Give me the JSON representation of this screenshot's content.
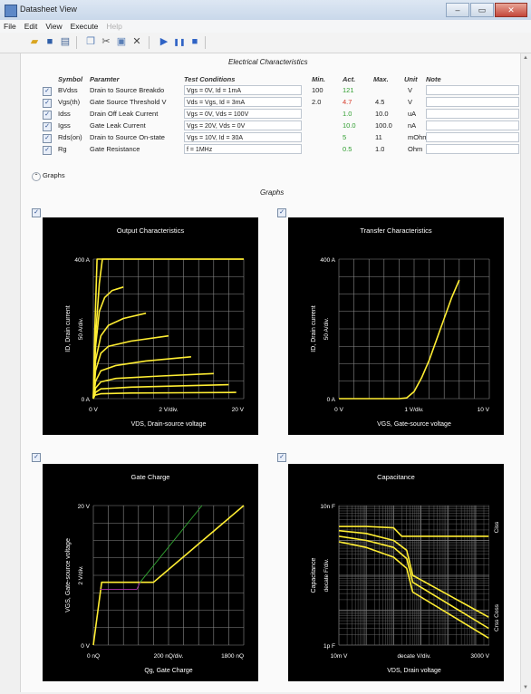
{
  "window": {
    "title": "Datasheet View",
    "minimize": "‒",
    "maximize": "▭",
    "close": "✕"
  },
  "menu": {
    "file": "File",
    "edit": "Edit",
    "view": "View",
    "execute": "Execute",
    "help": "Help"
  },
  "sections": {
    "electrical": "Electrical Characteristics",
    "graphs_toggle": "Graphs",
    "graphs": "Graphs"
  },
  "table": {
    "headers": {
      "symbol": "Symbol",
      "parameter": "Paramter",
      "conditions": "Test Conditions",
      "min": "Min.",
      "act": "Act.",
      "max": "Max.",
      "unit": "Unit",
      "note": "Note"
    },
    "rows": [
      {
        "symbol": "BVdss",
        "parameter": "Drain to Source Breakdo",
        "conditions": "Vgs = 0V, Id = 1mA",
        "min": "100",
        "act": "121",
        "act_color": "#2f9e2f",
        "max": "",
        "unit": "V",
        "note": ""
      },
      {
        "symbol": "Vgs(th)",
        "parameter": "Gate Source Threshold V",
        "conditions": "Vds = Vgs, Id = 3mA",
        "min": "2.0",
        "act": "4.7",
        "act_color": "#d63a2a",
        "max": "4.5",
        "unit": "V",
        "note": ""
      },
      {
        "symbol": "Idss",
        "parameter": "Drain Off Leak Current",
        "conditions": "Vgs = 0V, Vds = 100V",
        "min": "",
        "act": "1.0",
        "act_color": "#2f9e2f",
        "max": "10.0",
        "unit": "uA",
        "note": ""
      },
      {
        "symbol": "Igss",
        "parameter": "Gate Leak Current",
        "conditions": "Vgs = 20V, Vds = 0V",
        "min": "",
        "act": "10.0",
        "act_color": "#2f9e2f",
        "max": "100.0",
        "unit": "nA",
        "note": ""
      },
      {
        "symbol": "Rds(on)",
        "parameter": "Drain to Source On-state",
        "conditions": "Vgs = 10V, Id = 30A",
        "min": "",
        "act": "5",
        "act_color": "#2f9e2f",
        "max": "11",
        "unit": "mOhm",
        "note": ""
      },
      {
        "symbol": "Rg",
        "parameter": "Gate Resistance",
        "conditions": "f = 1MHz",
        "min": "",
        "act": "0.5",
        "act_color": "#2f9e2f",
        "max": "1.0",
        "unit": "Ohm",
        "note": ""
      }
    ]
  },
  "chart_data": [
    {
      "type": "line",
      "title": "Output Characteristics",
      "xlabel": "VDS, Drain-source voltage",
      "ylabel": "ID, Drain current",
      "x_ticks": [
        "0 V",
        "2 V/div.",
        "20 V"
      ],
      "y_ticks": [
        "400 A",
        "50 A/div.",
        "0 A"
      ],
      "xlim": [
        0,
        20
      ],
      "ylim": [
        0,
        400
      ],
      "series": [
        {
          "x": [
            0,
            0.2,
            0.5,
            1,
            20
          ],
          "y": [
            0,
            200,
            400,
            400,
            400
          ]
        },
        {
          "x": [
            0,
            0.3,
            0.8,
            1.2,
            20
          ],
          "y": [
            0,
            180,
            330,
            400,
            400
          ]
        },
        {
          "x": [
            0,
            0.3,
            0.8,
            1.5,
            2.5,
            4
          ],
          "y": [
            0,
            150,
            250,
            290,
            310,
            320
          ]
        },
        {
          "x": [
            0,
            0.3,
            1,
            2,
            4,
            7
          ],
          "y": [
            0,
            110,
            180,
            210,
            230,
            245
          ]
        },
        {
          "x": [
            0,
            0.3,
            1,
            2,
            5,
            10
          ],
          "y": [
            0,
            80,
            130,
            150,
            165,
            180
          ]
        },
        {
          "x": [
            0,
            0.3,
            1,
            3,
            7,
            13
          ],
          "y": [
            0,
            50,
            80,
            95,
            108,
            120
          ]
        },
        {
          "x": [
            0,
            0.3,
            1,
            3,
            9,
            16
          ],
          "y": [
            0,
            30,
            48,
            58,
            65,
            72
          ]
        },
        {
          "x": [
            0,
            0.3,
            1,
            5,
            12,
            18
          ],
          "y": [
            0,
            18,
            28,
            33,
            37,
            40
          ]
        },
        {
          "x": [
            0,
            0.2,
            1,
            5,
            12,
            19
          ],
          "y": [
            0,
            10,
            14,
            16,
            17,
            18
          ]
        }
      ]
    },
    {
      "type": "line",
      "title": "Transfer Characteristics",
      "xlabel": "VGS, Gate-source voltage",
      "ylabel": "ID, Drain current",
      "x_ticks": [
        "0 V",
        "1 V/div.",
        "10 V"
      ],
      "y_ticks": [
        "400 A",
        "50 A/div.",
        "0 A"
      ],
      "xlim": [
        0,
        10
      ],
      "ylim": [
        0,
        400
      ],
      "series": [
        {
          "x": [
            0,
            4,
            4.5,
            5,
            5.5,
            6,
            6.5,
            7,
            7.5,
            8
          ],
          "y": [
            0,
            0,
            2,
            20,
            60,
            110,
            170,
            230,
            290,
            340
          ]
        }
      ]
    },
    {
      "type": "line",
      "title": "Gate Charge",
      "xlabel": "Qg, Gate Charge",
      "ylabel": "VGS, Gate-source voltage",
      "x_ticks": [
        "0 nQ",
        "200 nQ/div.",
        "1800 nQ"
      ],
      "y_ticks": [
        "20 V",
        "2 V/div.",
        "0 V"
      ],
      "xlim": [
        0,
        1800
      ],
      "ylim": [
        0,
        20
      ],
      "series": [
        {
          "color": "#ffee33",
          "x": [
            0,
            100,
            100,
            720,
            1800
          ],
          "y": [
            0,
            9,
            9,
            9,
            20
          ]
        },
        {
          "color": "#33aa33",
          "x": [
            560,
            1300
          ],
          "y": [
            9,
            20
          ]
        },
        {
          "color": "#aa33aa",
          "x": [
            80,
            520,
            560
          ],
          "y": [
            8,
            8,
            9
          ]
        }
      ]
    },
    {
      "type": "line",
      "title": "Capacitance",
      "xlabel": "VDS, Drain voltage",
      "ylabel": "Capacitance",
      "x_ticks": [
        "10m V",
        "decate V/div.",
        "3000 V"
      ],
      "y_ticks": [
        "10n F",
        "decate F/div.",
        "1p F"
      ],
      "side_labels": [
        "Ciss",
        "Crss Coss"
      ],
      "series": [
        {
          "x": [
            0.01,
            0.1,
            1,
            2,
            3000
          ],
          "y": [
            0.85,
            0.85,
            0.84,
            0.78,
            0.78
          ]
        },
        {
          "x": [
            0.01,
            0.1,
            1,
            3,
            5,
            3000
          ],
          "y": [
            0.82,
            0.8,
            0.75,
            0.68,
            0.5,
            0.2
          ]
        },
        {
          "x": [
            0.01,
            0.1,
            1,
            3,
            5,
            3000
          ],
          "y": [
            0.78,
            0.75,
            0.7,
            0.62,
            0.45,
            0.12
          ]
        },
        {
          "x": [
            0.01,
            0.1,
            1,
            3,
            5,
            3000
          ],
          "y": [
            0.74,
            0.7,
            0.63,
            0.55,
            0.38,
            0.05
          ]
        }
      ]
    }
  ]
}
